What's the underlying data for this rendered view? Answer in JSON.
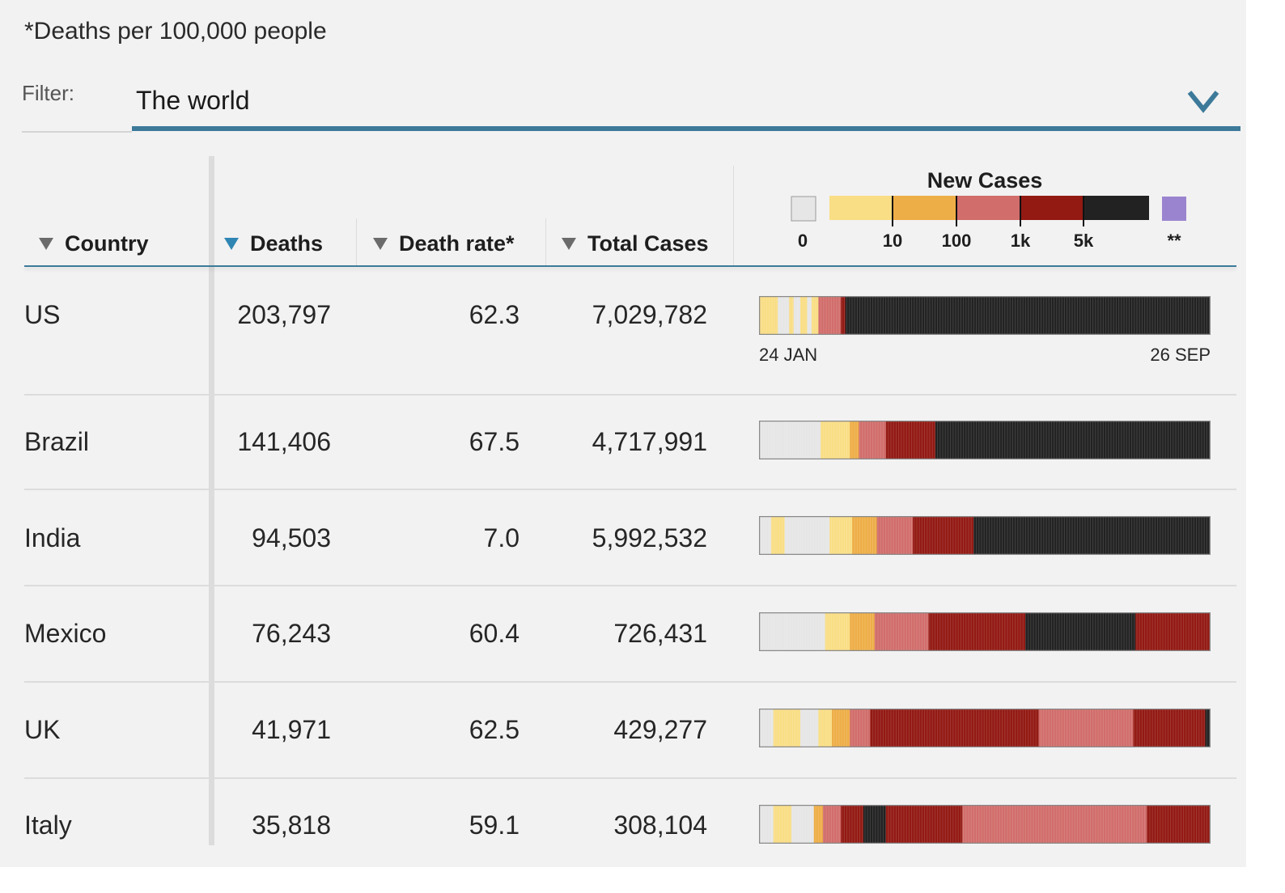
{
  "footnote": "*Deaths per 100,000 people",
  "filter": {
    "label": "Filter:",
    "value": "The world"
  },
  "columns": {
    "country": "Country",
    "deaths": "Deaths",
    "rate": "Death rate*",
    "cases": "Total Cases"
  },
  "colors": {
    "zero": "#e6e6e6",
    "lt10": "#f9de85",
    "lt100": "#eeae47",
    "lt1k": "#d16d6b",
    "lt5k": "#931913",
    "gte5k": "#222222",
    "missing": "#9b84cf",
    "accent": "#3d7a9a",
    "sort_active": "#2f86b3"
  },
  "legend": {
    "title": "New Cases",
    "labels": [
      "0",
      "10",
      "100",
      "1k",
      "5k",
      "**"
    ]
  },
  "dates": {
    "start": "24 JAN",
    "end": "26 SEP"
  },
  "chart_data": {
    "type": "table",
    "title": "New Cases",
    "color_scale_labels": [
      "0",
      "10",
      "100",
      "1k",
      "5k",
      "**"
    ],
    "rows": [
      {
        "country": "US",
        "deaths": "203,797",
        "rate": "62.3",
        "cases": "7,029,782",
        "timeline": [
          [
            0.0,
            0.04,
            "lt10"
          ],
          [
            0.04,
            0.065,
            "zero"
          ],
          [
            0.065,
            0.075,
            "lt10"
          ],
          [
            0.075,
            0.09,
            "zero"
          ],
          [
            0.09,
            0.105,
            "lt10"
          ],
          [
            0.105,
            0.115,
            "zero"
          ],
          [
            0.115,
            0.13,
            "lt10"
          ],
          [
            0.13,
            0.18,
            "lt1k"
          ],
          [
            0.18,
            0.19,
            "lt5k"
          ],
          [
            0.19,
            0.23,
            "gte5k"
          ],
          [
            0.23,
            1.0,
            "gte5k"
          ]
        ]
      },
      {
        "country": "Brazil",
        "deaths": "141,406",
        "rate": "67.5",
        "cases": "4,717,991",
        "timeline": [
          [
            0.0,
            0.135,
            "zero"
          ],
          [
            0.135,
            0.16,
            "lt10"
          ],
          [
            0.16,
            0.2,
            "lt10"
          ],
          [
            0.2,
            0.22,
            "lt100"
          ],
          [
            0.22,
            0.28,
            "lt1k"
          ],
          [
            0.28,
            0.39,
            "lt5k"
          ],
          [
            0.39,
            1.0,
            "gte5k"
          ]
        ]
      },
      {
        "country": "India",
        "deaths": "94,503",
        "rate": "7.0",
        "cases": "5,992,532",
        "timeline": [
          [
            0.0,
            0.025,
            "zero"
          ],
          [
            0.025,
            0.055,
            "lt10"
          ],
          [
            0.055,
            0.155,
            "zero"
          ],
          [
            0.155,
            0.205,
            "lt10"
          ],
          [
            0.205,
            0.26,
            "lt100"
          ],
          [
            0.26,
            0.34,
            "lt1k"
          ],
          [
            0.34,
            0.475,
            "lt5k"
          ],
          [
            0.475,
            1.0,
            "gte5k"
          ]
        ]
      },
      {
        "country": "Mexico",
        "deaths": "76,243",
        "rate": "60.4",
        "cases": "726,431",
        "timeline": [
          [
            0.0,
            0.145,
            "zero"
          ],
          [
            0.145,
            0.2,
            "lt10"
          ],
          [
            0.2,
            0.255,
            "lt100"
          ],
          [
            0.255,
            0.375,
            "lt1k"
          ],
          [
            0.375,
            0.59,
            "lt5k"
          ],
          [
            0.59,
            0.65,
            "gte5k"
          ],
          [
            0.65,
            0.835,
            "gte5k"
          ],
          [
            0.835,
            1.0,
            "lt5k"
          ]
        ]
      },
      {
        "country": "UK",
        "deaths": "41,971",
        "rate": "62.5",
        "cases": "429,277",
        "timeline": [
          [
            0.0,
            0.03,
            "zero"
          ],
          [
            0.03,
            0.09,
            "lt10"
          ],
          [
            0.09,
            0.13,
            "zero"
          ],
          [
            0.13,
            0.16,
            "lt10"
          ],
          [
            0.16,
            0.2,
            "lt100"
          ],
          [
            0.2,
            0.245,
            "lt1k"
          ],
          [
            0.245,
            0.62,
            "lt5k"
          ],
          [
            0.62,
            0.83,
            "lt1k"
          ],
          [
            0.83,
            0.99,
            "lt5k"
          ],
          [
            0.99,
            1.0,
            "gte5k"
          ]
        ]
      },
      {
        "country": "Italy",
        "deaths": "35,818",
        "rate": "59.1",
        "cases": "308,104",
        "timeline": [
          [
            0.0,
            0.03,
            "zero"
          ],
          [
            0.03,
            0.07,
            "lt10"
          ],
          [
            0.07,
            0.12,
            "zero"
          ],
          [
            0.12,
            0.14,
            "lt100"
          ],
          [
            0.14,
            0.18,
            "lt1k"
          ],
          [
            0.18,
            0.23,
            "lt5k"
          ],
          [
            0.23,
            0.28,
            "gte5k"
          ],
          [
            0.28,
            0.45,
            "lt5k"
          ],
          [
            0.45,
            0.86,
            "lt1k"
          ],
          [
            0.86,
            1.0,
            "lt5k"
          ]
        ]
      }
    ]
  }
}
